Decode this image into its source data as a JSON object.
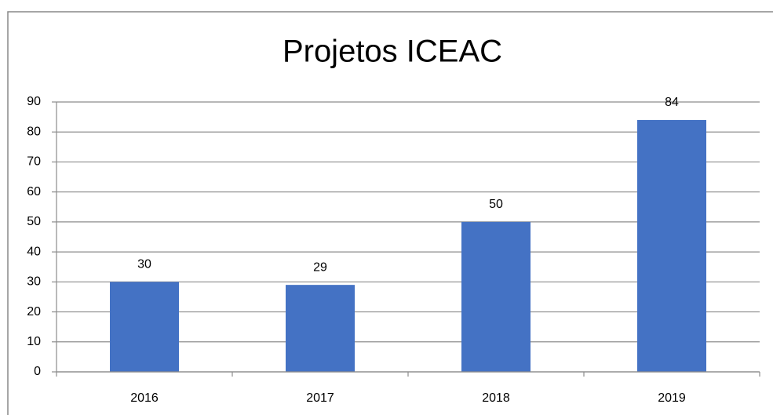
{
  "chart_data": {
    "type": "bar",
    "title": "Projetos ICEAC",
    "categories": [
      "2016",
      "2017",
      "2018",
      "2019"
    ],
    "values": [
      30,
      29,
      50,
      84
    ],
    "color": "#4472c4",
    "ylim": [
      0,
      90
    ],
    "yticks": [
      0,
      10,
      20,
      30,
      40,
      50,
      60,
      70,
      80,
      90
    ],
    "grid": true
  }
}
